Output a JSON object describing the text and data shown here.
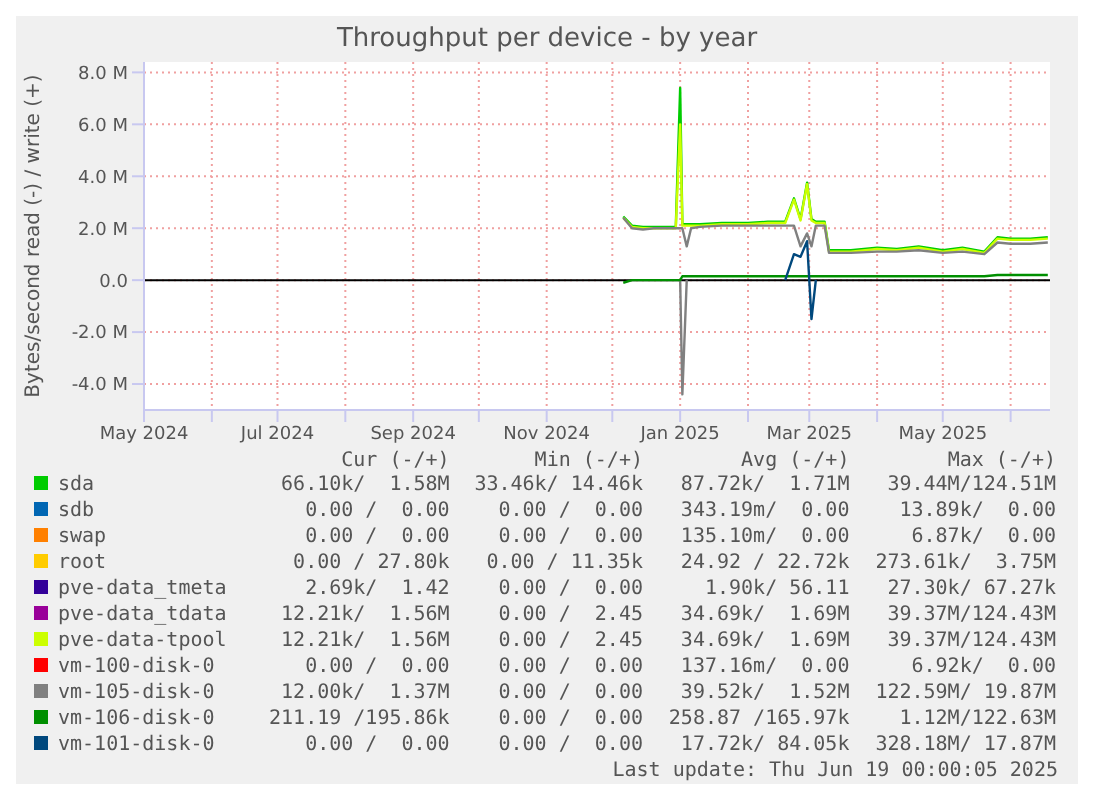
{
  "chart_data": {
    "type": "line",
    "title": "Throughput per device - by year",
    "ylabel": "Bytes/second read (-) / write (+)",
    "x": [
      "2024-12-06",
      "2024-12-10",
      "2024-12-15",
      "2024-12-20",
      "2024-12-25",
      "2024-12-30",
      "2025-01-01",
      "2025-01-02",
      "2025-01-04",
      "2025-01-06",
      "2025-01-10",
      "2025-01-20",
      "2025-02-01",
      "2025-02-10",
      "2025-02-18",
      "2025-02-22",
      "2025-02-25",
      "2025-02-28",
      "2025-03-02",
      "2025-03-04",
      "2025-03-08",
      "2025-03-10",
      "2025-03-20",
      "2025-04-01",
      "2025-04-10",
      "2025-04-20",
      "2025-05-01",
      "2025-05-10",
      "2025-05-20",
      "2025-05-26",
      "2025-06-01",
      "2025-06-10",
      "2025-06-18"
    ],
    "xlim": [
      "2024-05-01",
      "2025-06-19"
    ],
    "xticks": [
      {
        "value": "2024-05-01",
        "label": "May 2024"
      },
      {
        "value": "2024-06-01",
        "label": null
      },
      {
        "value": "2024-07-01",
        "label": "Jul 2024"
      },
      {
        "value": "2024-08-01",
        "label": null
      },
      {
        "value": "2024-09-01",
        "label": "Sep 2024"
      },
      {
        "value": "2024-10-01",
        "label": null
      },
      {
        "value": "2024-11-01",
        "label": "Nov 2024"
      },
      {
        "value": "2024-12-01",
        "label": null
      },
      {
        "value": "2025-01-01",
        "label": "Jan 2025"
      },
      {
        "value": "2025-02-01",
        "label": null
      },
      {
        "value": "2025-03-01",
        "label": "Mar 2025"
      },
      {
        "value": "2025-04-01",
        "label": null
      },
      {
        "value": "2025-05-01",
        "label": "May 2025"
      },
      {
        "value": "2025-06-01",
        "label": null
      }
    ],
    "ylim": [
      -5,
      8.4
    ],
    "yticks": [
      {
        "value": -4,
        "label": "-4.0 M"
      },
      {
        "value": -2,
        "label": "-2.0 M"
      },
      {
        "value": 0,
        "label": "0.0"
      },
      {
        "value": 2,
        "label": "2.0 M"
      },
      {
        "value": 4,
        "label": "4.0 M"
      },
      {
        "value": 6,
        "label": "6.0 M"
      },
      {
        "value": 8,
        "label": "8.0 M"
      }
    ],
    "grid": true,
    "legend": "bottom",
    "marker": "none",
    "line_style": "solid",
    "ref_lines": [
      {
        "axis": "y",
        "value": 0,
        "color": "#000000"
      }
    ],
    "series": [
      {
        "name": "sda",
        "color": "#00cc00",
        "values": [
          2.45,
          2.1,
          2.05,
          2.05,
          2.05,
          2.05,
          7.4,
          2.15,
          2.15,
          2.15,
          2.15,
          2.2,
          2.2,
          2.25,
          2.25,
          3.15,
          2.35,
          3.75,
          2.35,
          2.25,
          2.25,
          1.15,
          1.15,
          1.25,
          1.2,
          1.3,
          1.15,
          1.25,
          1.1,
          1.65,
          1.6,
          1.6,
          1.65
        ]
      },
      {
        "name": "sdb",
        "color": "#0066b3",
        "values": [
          null,
          null,
          null,
          null,
          null,
          null,
          null,
          null,
          null,
          null,
          null,
          null,
          null,
          null,
          null,
          null,
          null,
          null,
          null,
          null,
          null,
          null,
          null,
          null,
          null,
          null,
          null,
          null,
          null,
          null,
          null,
          null,
          null
        ]
      },
      {
        "name": "swap",
        "color": "#ff8000",
        "values": [
          null,
          null,
          null,
          null,
          null,
          null,
          null,
          null,
          null,
          null,
          null,
          null,
          null,
          null,
          null,
          null,
          null,
          null,
          null,
          null,
          null,
          null,
          null,
          null,
          null,
          null,
          null,
          null,
          null,
          null,
          null,
          null,
          null
        ]
      },
      {
        "name": "root",
        "color": "#ffcc00",
        "values": [
          null,
          null,
          null,
          null,
          null,
          null,
          null,
          null,
          null,
          null,
          null,
          null,
          null,
          null,
          null,
          null,
          null,
          null,
          null,
          null,
          null,
          null,
          null,
          null,
          null,
          null,
          null,
          null,
          null,
          null,
          null,
          null,
          null
        ]
      },
      {
        "name": "pve-data_tmeta",
        "color": "#330099",
        "values": [
          null,
          null,
          null,
          null,
          null,
          null,
          null,
          null,
          null,
          null,
          null,
          null,
          null,
          null,
          null,
          null,
          null,
          null,
          null,
          null,
          null,
          null,
          null,
          null,
          null,
          null,
          null,
          null,
          null,
          null,
          null,
          null,
          null
        ]
      },
      {
        "name": "pve-data_tdata",
        "color": "#990099",
        "values": [
          null,
          null,
          null,
          null,
          null,
          null,
          null,
          null,
          null,
          null,
          null,
          null,
          null,
          null,
          null,
          null,
          null,
          null,
          null,
          null,
          null,
          null,
          null,
          null,
          null,
          null,
          null,
          null,
          null,
          null,
          null,
          null,
          null
        ]
      },
      {
        "name": "pve-data-tpool",
        "color": "#ccff00",
        "values": [
          2.4,
          2.05,
          2.0,
          2.0,
          2.0,
          2.0,
          6.0,
          2.1,
          2.1,
          2.1,
          2.1,
          2.15,
          2.15,
          2.2,
          2.2,
          3.1,
          2.3,
          3.7,
          2.3,
          2.2,
          2.2,
          1.1,
          1.1,
          1.2,
          1.15,
          1.25,
          1.1,
          1.2,
          1.05,
          1.6,
          1.55,
          1.55,
          1.6
        ]
      },
      {
        "name": "vm-100-disk-0",
        "color": "#ff0000",
        "values": [
          null,
          null,
          null,
          null,
          null,
          null,
          null,
          null,
          null,
          null,
          null,
          null,
          null,
          null,
          null,
          null,
          null,
          null,
          null,
          null,
          null,
          null,
          null,
          null,
          null,
          null,
          null,
          null,
          null,
          null,
          null,
          null,
          null
        ]
      },
      {
        "name": "vm-105-disk-0",
        "color": "#808080",
        "values": [
          2.4,
          2.0,
          1.95,
          2.0,
          2.0,
          2.0,
          2.0,
          2.0,
          1.3,
          2.0,
          2.05,
          2.1,
          2.1,
          2.1,
          2.1,
          2.1,
          1.3,
          1.8,
          1.3,
          2.1,
          2.1,
          1.05,
          1.05,
          1.1,
          1.1,
          1.15,
          1.05,
          1.1,
          1.0,
          1.45,
          1.4,
          1.4,
          1.45
        ]
      },
      {
        "color": "#808080",
        "values": [
          null,
          null,
          null,
          null,
          null,
          null,
          0,
          -4.4,
          0,
          null,
          null,
          null,
          null,
          null,
          null,
          null,
          null,
          null,
          null,
          null,
          null,
          null,
          null,
          null,
          null,
          null,
          null,
          null,
          null,
          null,
          null,
          null,
          null
        ]
      },
      {
        "name": "vm-106-disk-0",
        "color": "#008f00",
        "values": [
          -0.1,
          0,
          0,
          0,
          0,
          0,
          0,
          0.15,
          0.15,
          0.15,
          0.15,
          0.15,
          0.15,
          0.15,
          0.15,
          0.15,
          0.15,
          0.15,
          0.15,
          0.15,
          0.15,
          0.15,
          0.15,
          0.15,
          0.15,
          0.15,
          0.15,
          0.15,
          0.15,
          0.2,
          0.2,
          0.2,
          0.2
        ]
      },
      {
        "name": "vm-101-disk-0",
        "color": "#00487d",
        "values": [
          null,
          null,
          null,
          null,
          null,
          null,
          null,
          null,
          null,
          null,
          null,
          null,
          null,
          null,
          0,
          1.0,
          0.9,
          1.5,
          -1.5,
          0,
          null,
          null,
          null,
          null,
          null,
          null,
          null,
          null,
          null,
          null,
          null,
          null,
          null
        ]
      }
    ],
    "annotations": [
      "Cur (-/+)",
      "Min (-/+)",
      "Avg (-/+)",
      "Max (-/+)",
      "66.10k/  1.58M",
      "33.46k/ 14.46k",
      "87.72k/  1.71M",
      "39.44M/124.51M",
      "0.00 /  0.00",
      "0.00 /  0.00",
      "343.19m/  0.00",
      "13.89k/  0.00",
      "0.00 /  0.00",
      "0.00 /  0.00",
      "135.10m/  0.00",
      "6.87k/  0.00",
      "0.00 / 27.80k",
      "0.00 / 11.35k",
      "24.92 / 22.72k",
      "273.61k/  3.75M",
      "2.69k/  1.42",
      "0.00 /  0.00",
      "1.90k/ 56.11",
      "27.30k/ 67.27k",
      "12.21k/  1.56M",
      "0.00 /  2.45",
      "34.69k/  1.69M",
      "39.37M/124.43M",
      "12.21k/  1.56M",
      "0.00 /  2.45",
      "34.69k/  1.69M",
      "39.37M/124.43M",
      "0.00 /  0.00",
      "0.00 /  0.00",
      "137.16m/  0.00",
      "6.92k/  0.00",
      "12.00k/  1.37M",
      "0.00 /  0.00",
      "39.52k/  1.52M",
      "122.59M/ 19.87M",
      "211.19 /195.86k",
      "0.00 /  0.00",
      "258.87 /165.97k",
      "1.12M/122.63M",
      "0.00 /  0.00",
      "0.00 /  0.00",
      "17.72k/ 84.05k",
      "328.18M/ 17.87M",
      "Last update: Thu Jun 19 00:00:05 2025"
    ]
  }
}
